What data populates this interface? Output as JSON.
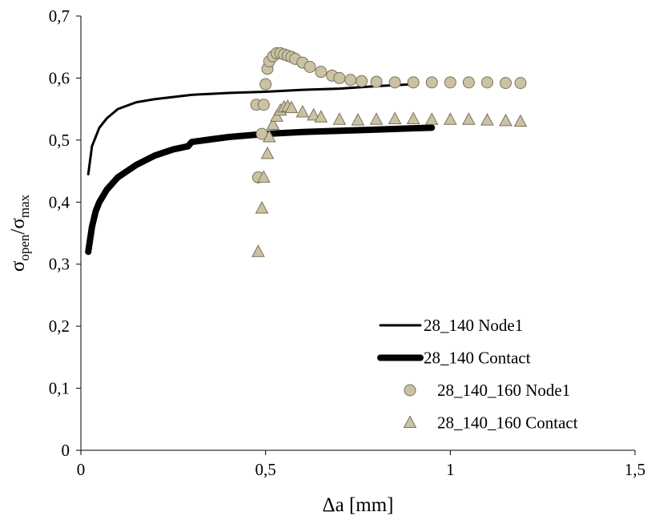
{
  "chart_data": {
    "type": "line",
    "x_label": "Δa [mm]",
    "y_label": [
      "σ",
      "open",
      "/σ",
      "max"
    ],
    "xlim": [
      0,
      1.5
    ],
    "xticks": [
      0,
      {
        "value": 0.5,
        "label": "0,5"
      },
      1,
      {
        "value": 1.5,
        "label": "1,5"
      }
    ],
    "ylim": [
      0,
      0.7
    ],
    "yticks": [
      0,
      {
        "value": 0.1,
        "label": "0,1"
      },
      {
        "value": 0.2,
        "label": "0,2"
      },
      {
        "value": 0.3,
        "label": "0,3"
      },
      {
        "value": 0.4,
        "label": "0,4"
      },
      {
        "value": 0.5,
        "label": "0,5"
      },
      {
        "value": 0.6,
        "label": "0,6"
      },
      {
        "value": 0.7,
        "label": "0,7"
      }
    ],
    "grid": false,
    "legend": "lower right",
    "series": [
      {
        "name": "28_140 Node1",
        "color": "#000000",
        "line_width": 3,
        "marker": "none",
        "x": [
          0.02,
          0.03,
          0.05,
          0.07,
          0.1,
          0.15,
          0.2,
          0.3,
          0.4,
          0.5,
          0.6,
          0.7,
          0.8,
          0.9
        ],
        "values": [
          0.445,
          0.49,
          0.52,
          0.535,
          0.55,
          0.561,
          0.566,
          0.573,
          0.576,
          0.578,
          0.581,
          0.583,
          0.587,
          0.59
        ]
      },
      {
        "name": "28_140 Contact",
        "color": "#000000",
        "line_width": 8,
        "marker": "none",
        "x": [
          0.02,
          0.025,
          0.03,
          0.04,
          0.05,
          0.07,
          0.1,
          0.15,
          0.2,
          0.25,
          0.29,
          0.3,
          0.4,
          0.5,
          0.6,
          0.7,
          0.8,
          0.95
        ],
        "values": [
          0.32,
          0.34,
          0.36,
          0.385,
          0.4,
          0.42,
          0.44,
          0.46,
          0.475,
          0.485,
          0.49,
          0.497,
          0.505,
          0.51,
          0.513,
          0.515,
          0.517,
          0.52
        ]
      },
      {
        "name": "28_140_160 Node1",
        "color": "#cbc2a3",
        "line_width": 0,
        "marker": "circle",
        "x": [
          0.48,
          0.475,
          0.49,
          0.495,
          0.5,
          0.505,
          0.51,
          0.52,
          0.53,
          0.54,
          0.55,
          0.56,
          0.57,
          0.58,
          0.6,
          0.62,
          0.65,
          0.68,
          0.7,
          0.73,
          0.76,
          0.8,
          0.85,
          0.9,
          0.95,
          1.0,
          1.05,
          1.1,
          1.15,
          1.19
        ],
        "values": [
          0.44,
          0.557,
          0.51,
          0.557,
          0.59,
          0.615,
          0.627,
          0.635,
          0.64,
          0.64,
          0.638,
          0.636,
          0.634,
          0.631,
          0.625,
          0.618,
          0.61,
          0.604,
          0.6,
          0.597,
          0.595,
          0.594,
          0.593,
          0.593,
          0.593,
          0.593,
          0.593,
          0.593,
          0.592,
          0.592
        ]
      },
      {
        "name": "28_140_160 Contact",
        "color": "#cbc2a3",
        "line_width": 0,
        "marker": "triangle",
        "x": [
          0.48,
          0.49,
          0.495,
          0.505,
          0.51,
          0.52,
          0.53,
          0.54,
          0.55,
          0.56,
          0.57,
          0.6,
          0.63,
          0.65,
          0.7,
          0.75,
          0.8,
          0.85,
          0.9,
          0.95,
          1.0,
          1.05,
          1.1,
          1.15,
          1.19
        ],
        "values": [
          0.32,
          0.39,
          0.44,
          0.478,
          0.505,
          0.525,
          0.538,
          0.548,
          0.553,
          0.554,
          0.552,
          0.545,
          0.54,
          0.537,
          0.533,
          0.532,
          0.533,
          0.534,
          0.534,
          0.533,
          0.533,
          0.533,
          0.532,
          0.531,
          0.53
        ]
      }
    ]
  }
}
